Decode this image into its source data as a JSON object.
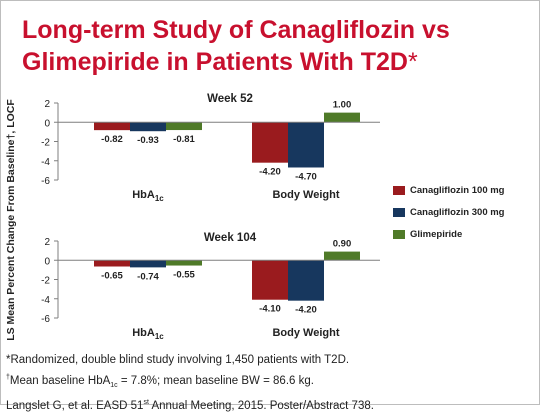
{
  "slide": {
    "title_line1": "Long-term Study of Canagliflozin vs",
    "title_line2": "Glimepiride in Patients With T2D",
    "title_asterisk": "*",
    "y_axis_label": "LS Mean Percent Change From Baseline†, LOCF"
  },
  "legend": [
    {
      "label": "Canagliflozin 100 mg",
      "color": "#9a1b1e"
    },
    {
      "label": "Canagliflozin 300 mg",
      "color": "#17375e"
    },
    {
      "label": "Glimepiride",
      "color": "#4f7a28"
    }
  ],
  "chart_data": [
    {
      "type": "bar",
      "title": "Week 52",
      "categories": [
        "HbA1c",
        "Body Weight"
      ],
      "series": [
        {
          "name": "Canagliflozin 100 mg",
          "values": [
            -0.82,
            -4.2
          ]
        },
        {
          "name": "Canagliflozin 300 mg",
          "values": [
            -0.93,
            -4.7
          ]
        },
        {
          "name": "Glimepiride",
          "values": [
            -0.81,
            1.0
          ]
        }
      ],
      "data_labels": [
        [
          "-0.82",
          "-4.20"
        ],
        [
          "-0.93",
          "-4.70"
        ],
        [
          "-0.81",
          "1.00"
        ]
      ],
      "ylim": [
        -6,
        2
      ],
      "yticks": [
        "2",
        "0",
        "-2",
        "-4",
        "-6"
      ],
      "grid": false
    },
    {
      "type": "bar",
      "title": "Week 104",
      "categories": [
        "HbA1c",
        "Body Weight"
      ],
      "series": [
        {
          "name": "Canagliflozin 100 mg",
          "values": [
            -0.65,
            -4.1
          ]
        },
        {
          "name": "Canagliflozin 300 mg",
          "values": [
            -0.74,
            -4.2
          ]
        },
        {
          "name": "Glimepiride",
          "values": [
            -0.55,
            0.9
          ]
        }
      ],
      "data_labels": [
        [
          "-0.65",
          "-4.10"
        ],
        [
          "-0.74",
          "-4.20"
        ],
        [
          "-0.55",
          "0.90"
        ]
      ],
      "ylim": [
        -6,
        2
      ],
      "yticks": [
        "2",
        "0",
        "-2",
        "-4",
        "-6"
      ],
      "grid": false
    }
  ],
  "footnotes": {
    "line1": "*Randomized, double blind study involving 1,450 patients with T2D.",
    "line2_dagger": "†",
    "line2_a": "Mean baseline HbA",
    "line2_sub": "1c",
    "line2_b": " = 7.8%; mean baseline BW = 86.6 kg.",
    "line3_a": "Langslet G, et al. EASD 51",
    "line3_sup": "st",
    "line3_b": " Annual  Meeting, 2015. Poster/Abstract 738."
  }
}
